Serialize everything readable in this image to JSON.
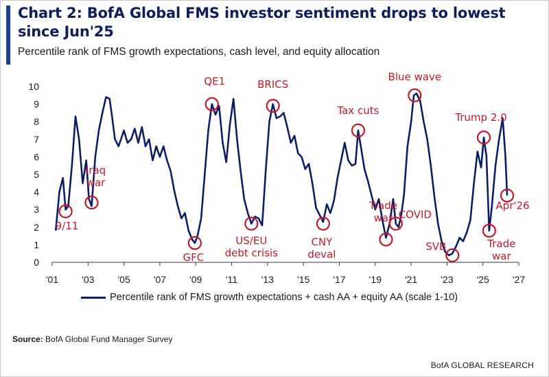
{
  "title": "Chart 2: BofA Global FMS investor sentiment drops to lowest since Jun'25",
  "subtitle": "Percentile rank of FMS growth expectations, cash level, and equity allocation",
  "source": {
    "label": "Source:",
    "text": "BofA Global Fund Manager Survey"
  },
  "brand": "BofA GLOBAL RESEARCH",
  "colors": {
    "line": "#0c1d66",
    "annotation": "#c0182c",
    "title": "#0f1e5a",
    "accent": "#1f3f9e"
  },
  "chart_data": {
    "type": "line",
    "xlim": [
      2001,
      2027
    ],
    "ylim": [
      0,
      10
    ],
    "x_ticks": [
      2001,
      2003,
      2005,
      2007,
      2009,
      2011,
      2013,
      2015,
      2017,
      2019,
      2021,
      2023,
      2025,
      2027
    ],
    "x_tick_labels": [
      "'01",
      "'03",
      "'05",
      "'07",
      "'09",
      "'11",
      "'13",
      "'15",
      "'17",
      "'19",
      "'21",
      "'23",
      "'25",
      "'27"
    ],
    "y_ticks": [
      0,
      1,
      2,
      3,
      4,
      5,
      6,
      7,
      8,
      9,
      10
    ],
    "y_tick_labels": [
      "0",
      "1",
      "2",
      "3",
      "4",
      "5",
      "6",
      "7",
      "8",
      "9",
      "10"
    ],
    "grid": false,
    "legend_position": "bottom",
    "series": [
      {
        "name": "Percentile rank of FMS growth expectations + cash AA + equity AA (scale 1-10)",
        "x": [
          2001.2,
          2001.4,
          2001.6,
          2001.75,
          2001.9,
          2002.1,
          2002.3,
          2002.5,
          2002.7,
          2002.9,
          2003.05,
          2003.2,
          2003.4,
          2003.6,
          2003.8,
          2004.0,
          2004.2,
          2004.35,
          2004.5,
          2004.7,
          2005.0,
          2005.2,
          2005.4,
          2005.6,
          2005.8,
          2006.0,
          2006.2,
          2006.4,
          2006.6,
          2006.8,
          2007.0,
          2007.2,
          2007.4,
          2007.6,
          2007.8,
          2008.0,
          2008.2,
          2008.4,
          2008.6,
          2008.8,
          2008.95,
          2009.1,
          2009.3,
          2009.5,
          2009.7,
          2009.9,
          2010.1,
          2010.3,
          2010.5,
          2010.7,
          2010.9,
          2011.1,
          2011.3,
          2011.5,
          2011.7,
          2011.9,
          2012.1,
          2012.3,
          2012.5,
          2012.7,
          2012.9,
          2013.1,
          2013.3,
          2013.5,
          2013.7,
          2013.9,
          2014.1,
          2014.3,
          2014.5,
          2014.7,
          2014.9,
          2015.1,
          2015.3,
          2015.5,
          2015.7,
          2015.9,
          2016.1,
          2016.3,
          2016.5,
          2016.7,
          2016.9,
          2017.1,
          2017.3,
          2017.5,
          2017.7,
          2017.9,
          2018.05,
          2018.2,
          2018.4,
          2018.6,
          2018.8,
          2019.0,
          2019.2,
          2019.4,
          2019.6,
          2019.8,
          2020.0,
          2020.15,
          2020.3,
          2020.45,
          2020.6,
          2020.8,
          2021.0,
          2021.15,
          2021.3,
          2021.5,
          2021.7,
          2021.9,
          2022.1,
          2022.3,
          2022.5,
          2022.7,
          2022.9,
          2023.1,
          2023.3,
          2023.5,
          2023.7,
          2023.9,
          2024.1,
          2024.3,
          2024.5,
          2024.7,
          2024.9,
          2025.05,
          2025.2,
          2025.35,
          2025.5,
          2025.7,
          2025.9,
          2026.1,
          2026.25,
          2026.35
        ],
        "y": [
          1.8,
          4.0,
          4.8,
          3.0,
          3.2,
          5.5,
          8.3,
          7.0,
          4.5,
          5.8,
          3.6,
          3.2,
          6.0,
          7.5,
          8.5,
          9.4,
          9.3,
          8.2,
          7.0,
          6.6,
          7.5,
          6.8,
          7.0,
          7.6,
          6.8,
          7.7,
          6.6,
          7.0,
          5.8,
          6.6,
          6.0,
          6.6,
          5.8,
          5.2,
          4.1,
          3.2,
          2.5,
          2.8,
          1.8,
          1.3,
          1.1,
          1.5,
          2.5,
          5.0,
          7.5,
          9.0,
          8.4,
          8.9,
          6.8,
          5.7,
          7.8,
          9.3,
          7.0,
          5.2,
          3.6,
          2.8,
          2.2,
          2.6,
          2.5,
          2.1,
          5.2,
          8.0,
          9.0,
          8.2,
          8.3,
          8.5,
          7.7,
          6.8,
          7.2,
          6.2,
          6.0,
          5.3,
          5.6,
          4.5,
          3.1,
          2.7,
          2.3,
          3.3,
          2.8,
          3.5,
          4.8,
          5.8,
          6.8,
          5.8,
          5.5,
          5.6,
          7.5,
          6.6,
          5.3,
          4.6,
          3.8,
          3.0,
          3.6,
          2.4,
          1.4,
          2.2,
          3.6,
          2.2,
          2.0,
          2.7,
          3.8,
          6.6,
          8.0,
          9.5,
          9.6,
          9.2,
          8.0,
          7.0,
          5.5,
          3.7,
          2.2,
          1.2,
          0.6,
          0.4,
          0.5,
          0.9,
          1.4,
          1.2,
          1.7,
          2.4,
          4.5,
          6.3,
          5.4,
          7.1,
          6.0,
          1.8,
          3.2,
          5.5,
          7.0,
          8.2,
          6.1,
          3.8
        ]
      }
    ],
    "annotations": [
      {
        "label": "9/11",
        "x": 2001.75,
        "y": 2.9
      },
      {
        "label": "Iraq\nwar",
        "x": 2003.2,
        "y": 3.4
      },
      {
        "label": "GFC",
        "x": 2008.95,
        "y": 1.1
      },
      {
        "label": "QE1",
        "x": 2009.9,
        "y": 9.0
      },
      {
        "label": "US/EU\ndebt crisis",
        "x": 2012.1,
        "y": 2.2
      },
      {
        "label": "BRICS",
        "x": 2013.3,
        "y": 8.9
      },
      {
        "label": "CNY\ndeval",
        "x": 2016.1,
        "y": 2.2
      },
      {
        "label": "Tax cuts",
        "x": 2018.05,
        "y": 7.5
      },
      {
        "label": "Trade\nwar",
        "x": 2019.6,
        "y": 1.3
      },
      {
        "label": "COVID",
        "x": 2020.15,
        "y": 2.2
      },
      {
        "label": "Blue wave",
        "x": 2021.2,
        "y": 9.5
      },
      {
        "label": "SVB",
        "x": 2023.3,
        "y": 0.4
      },
      {
        "label": "Trump 2.0",
        "x": 2025.05,
        "y": 7.1
      },
      {
        "label": "Trade\nwar",
        "x": 2025.35,
        "y": 1.8
      },
      {
        "label": "Apr'26",
        "x": 2026.35,
        "y": 3.8
      }
    ]
  }
}
